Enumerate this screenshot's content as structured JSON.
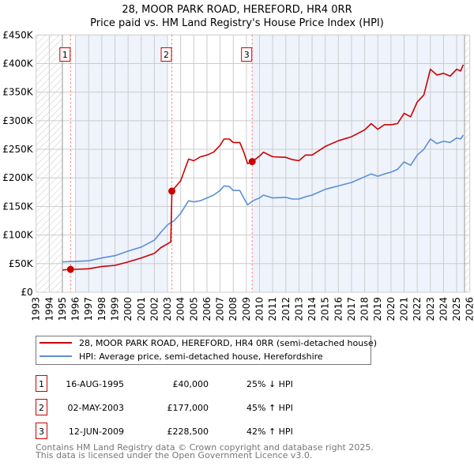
{
  "title": "28, MOOR PARK ROAD, HEREFORD, HR4 0RR",
  "subtitle": "Price paid vs. HM Land Registry's House Price Index (HPI)",
  "colors": {
    "property": "#cc0000",
    "hpi": "#5b8fd4",
    "shade": "#eef3fc",
    "grid": "#cccccc",
    "marker_box": "#cc0000"
  },
  "chart_data": {
    "type": "line",
    "xlim": [
      1993,
      2026
    ],
    "ylim": [
      0,
      450000
    ],
    "xticks": [
      "1993",
      "1994",
      "1995",
      "1996",
      "1997",
      "1998",
      "1999",
      "2000",
      "2001",
      "2002",
      "2003",
      "2004",
      "2005",
      "2006",
      "2007",
      "2008",
      "2009",
      "2010",
      "2011",
      "2012",
      "2013",
      "2014",
      "2015",
      "2016",
      "2017",
      "2018",
      "2019",
      "2020",
      "2021",
      "2022",
      "2023",
      "2024",
      "2025",
      "2026"
    ],
    "yticks": [
      {
        "v": 0,
        "label": "£0"
      },
      {
        "v": 50000,
        "label": "£50K"
      },
      {
        "v": 100000,
        "label": "£100K"
      },
      {
        "v": 150000,
        "label": "£150K"
      },
      {
        "v": 200000,
        "label": "£200K"
      },
      {
        "v": 250000,
        "label": "£250K"
      },
      {
        "v": 300000,
        "label": "£300K"
      },
      {
        "v": 350000,
        "label": "£350K"
      },
      {
        "v": 400000,
        "label": "£400K"
      },
      {
        "v": 450000,
        "label": "£450K"
      }
    ],
    "grid": true,
    "hatched_ranges": [
      [
        1993,
        1995
      ],
      [
        2025.6,
        2026
      ]
    ],
    "shaded_ranges": [
      [
        1996,
        2003
      ],
      [
        2009.44,
        2025.6
      ]
    ],
    "series": [
      {
        "name": "28, MOOR PARK ROAD, HEREFORD, HR4 0RR (semi-detached house)",
        "color": "#cc0000",
        "x": [
          1995.0,
          1995.62,
          1996,
          1997,
          1998,
          1999,
          2000,
          2001,
          2002,
          2002.5,
          2003.25,
          2003.33,
          2004,
          2004.6,
          2005,
          2005.5,
          2006,
          2006.5,
          2007,
          2007.3,
          2007.7,
          2008,
          2008.5,
          2008.8,
          2009.1,
          2009.44,
          2010,
          2010.3,
          2011,
          2012,
          2012.5,
          2013,
          2013.5,
          2014,
          2015,
          2016,
          2017,
          2018,
          2018.5,
          2019,
          2019.5,
          2020,
          2020.5,
          2021,
          2021.5,
          2022,
          2022.5,
          2023,
          2023.5,
          2024,
          2024.5,
          2025,
          2025.3,
          2025.5
        ],
        "y": [
          39000,
          40000,
          40000,
          41000,
          45000,
          47000,
          53000,
          60000,
          68000,
          78000,
          88000,
          177000,
          195000,
          233000,
          230000,
          237000,
          240000,
          245000,
          257000,
          268000,
          268000,
          262000,
          262000,
          245000,
          225000,
          228500,
          238000,
          245000,
          237000,
          236000,
          232000,
          230000,
          240000,
          240000,
          255000,
          265000,
          272000,
          284000,
          295000,
          285000,
          293000,
          293000,
          295000,
          313000,
          307000,
          333000,
          345000,
          390000,
          380000,
          383000,
          378000,
          390000,
          387000,
          398000
        ]
      },
      {
        "name": "HPI: Average price, semi-detached house, Herefordshire",
        "color": "#5b8fd4",
        "x": [
          1995.0,
          1996,
          1997,
          1998,
          1999,
          2000,
          2001,
          2002,
          2002.5,
          2003,
          2003.5,
          2004,
          2004.6,
          2005,
          2005.5,
          2006,
          2006.5,
          2007,
          2007.3,
          2007.7,
          2008,
          2008.5,
          2008.8,
          2009.1,
          2009.5,
          2010,
          2010.3,
          2011,
          2012,
          2012.5,
          2013,
          2013.5,
          2014,
          2015,
          2016,
          2017,
          2018,
          2018.5,
          2019,
          2019.5,
          2020,
          2020.5,
          2021,
          2021.5,
          2022,
          2022.5,
          2023,
          2023.5,
          2024,
          2024.5,
          2025,
          2025.3,
          2025.5
        ],
        "y": [
          53000,
          54000,
          55000,
          60000,
          64000,
          72000,
          79000,
          91000,
          105000,
          118000,
          125000,
          138000,
          160000,
          158000,
          160000,
          165000,
          170000,
          178000,
          186000,
          185000,
          178000,
          178000,
          165000,
          153000,
          160000,
          165000,
          170000,
          165000,
          166000,
          163000,
          163000,
          167000,
          170000,
          180000,
          186000,
          192000,
          202000,
          207000,
          203000,
          207000,
          210000,
          215000,
          228000,
          222000,
          240000,
          250000,
          268000,
          260000,
          264000,
          262000,
          270000,
          268000,
          275000
        ]
      }
    ],
    "sales": [
      {
        "id": "1",
        "x": 1995.62,
        "y": 40000
      },
      {
        "id": "2",
        "x": 2003.33,
        "y": 177000
      },
      {
        "id": "3",
        "x": 2009.44,
        "y": 228500
      }
    ]
  },
  "legend": [
    {
      "label": "28, MOOR PARK ROAD, HEREFORD, HR4 0RR (semi-detached house)"
    },
    {
      "label": "HPI: Average price, semi-detached house, Herefordshire"
    }
  ],
  "transactions": [
    {
      "num": "1",
      "date": "16-AUG-1995",
      "price": "£40,000",
      "hpi": "25% ↓ HPI"
    },
    {
      "num": "2",
      "date": "02-MAY-2003",
      "price": "£177,000",
      "hpi": "45% ↑ HPI"
    },
    {
      "num": "3",
      "date": "12-JUN-2009",
      "price": "£228,500",
      "hpi": "42% ↑ HPI"
    }
  ],
  "footer": [
    "Contains HM Land Registry data © Crown copyright and database right 2025.",
    "This data is licensed under the Open Government Licence v3.0."
  ]
}
